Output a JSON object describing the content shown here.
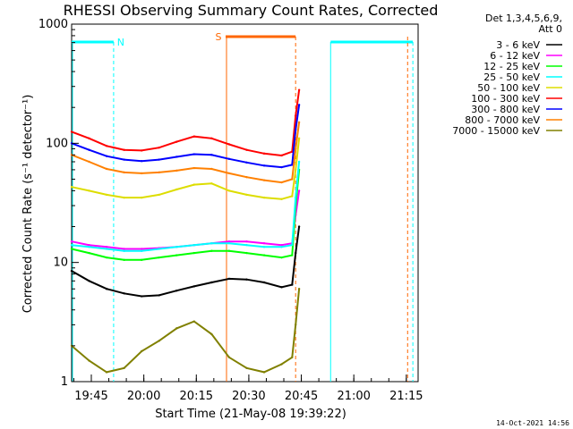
{
  "chart_data": {
    "type": "line",
    "title": "RHESSI Observing Summary Count Rates, Corrected",
    "xlabel": "Start Time (21-May-08 19:39:22)",
    "ylabel": "Corrected Count Rate (s⁻¹ detector⁻¹)",
    "yscale": "log",
    "ylim": [
      1,
      1000
    ],
    "xlim_minutes_from_start": [
      0,
      99
    ],
    "x_ticks": [
      "19:45",
      "20:00",
      "20:15",
      "20:30",
      "20:45",
      "21:00",
      "21:15"
    ],
    "y_ticks": [
      "1",
      "10",
      "100",
      "1000"
    ],
    "legend_header": [
      "Det 1,3,4,5,6,9,",
      "Att 0"
    ],
    "legend_position": "right",
    "series": [
      {
        "name": "3 - 6 keV",
        "color": "#000000",
        "x": [
          0,
          5,
          10,
          15,
          20,
          25,
          30,
          35,
          40,
          45,
          50,
          55,
          60,
          63,
          64,
          65
        ],
        "y": [
          8.5,
          7.0,
          6.0,
          5.5,
          5.2,
          5.3,
          5.8,
          6.3,
          6.8,
          7.3,
          7.2,
          6.8,
          6.2,
          6.5,
          12,
          20
        ]
      },
      {
        "name": "6 - 12 keV",
        "color": "#ff00ff",
        "x": [
          0,
          5,
          10,
          15,
          20,
          25,
          30,
          35,
          40,
          45,
          50,
          55,
          60,
          63,
          64,
          65
        ],
        "y": [
          15,
          14,
          13.5,
          13,
          13,
          13.2,
          13.5,
          14,
          14.5,
          15,
          15,
          14.5,
          14,
          14.5,
          25,
          40
        ]
      },
      {
        "name": "12 - 25 keV",
        "color": "#00ff00",
        "x": [
          0,
          5,
          10,
          15,
          20,
          25,
          30,
          35,
          40,
          45,
          50,
          55,
          60,
          63,
          64,
          65
        ],
        "y": [
          13,
          12,
          11,
          10.5,
          10.5,
          11,
          11.5,
          12,
          12.5,
          12.5,
          12,
          11.5,
          11,
          11.5,
          30,
          60
        ]
      },
      {
        "name": "25 - 50 keV",
        "color": "#00ffff",
        "x": [
          0,
          5,
          10,
          15,
          20,
          25,
          30,
          35,
          40,
          45,
          50,
          55,
          60,
          63,
          64,
          65
        ],
        "y": [
          14,
          13.5,
          13,
          12.5,
          12.5,
          13,
          13.5,
          14,
          14.5,
          14.5,
          14,
          13.5,
          13.5,
          14,
          35,
          70
        ]
      },
      {
        "name": "50 - 100 keV",
        "color": "#dddd00",
        "x": [
          0,
          5,
          10,
          15,
          20,
          25,
          30,
          35,
          40,
          45,
          50,
          55,
          60,
          63,
          64,
          65
        ],
        "y": [
          43,
          40,
          37,
          35,
          35,
          37,
          41,
          45,
          46,
          40,
          37,
          35,
          34,
          36,
          60,
          110
        ]
      },
      {
        "name": "100 - 300 keV",
        "color": "#ff0000",
        "x": [
          0,
          5,
          10,
          15,
          20,
          25,
          30,
          35,
          40,
          45,
          50,
          55,
          60,
          63,
          64,
          65
        ],
        "y": [
          125,
          110,
          95,
          88,
          87,
          92,
          103,
          114,
          110,
          98,
          88,
          82,
          79,
          85,
          170,
          280
        ]
      },
      {
        "name": "300 - 800 keV",
        "color": "#0000ff",
        "x": [
          0,
          5,
          10,
          15,
          20,
          25,
          30,
          35,
          40,
          45,
          50,
          55,
          60,
          63,
          64,
          65
        ],
        "y": [
          100,
          88,
          78,
          73,
          71,
          73,
          77,
          81,
          80,
          74,
          69,
          65,
          63,
          66,
          130,
          210
        ]
      },
      {
        "name": "800 - 7000 keV",
        "color": "#ff8000",
        "x": [
          0,
          5,
          10,
          15,
          20,
          25,
          30,
          35,
          40,
          45,
          50,
          55,
          60,
          63,
          64,
          65
        ],
        "y": [
          80,
          70,
          61,
          57,
          56,
          57,
          59,
          62,
          61,
          56,
          52,
          49,
          47,
          50,
          90,
          150
        ]
      },
      {
        "name": "7000 - 15000 keV",
        "color": "#808000",
        "x": [
          0,
          5,
          10,
          15,
          20,
          25,
          30,
          35,
          40,
          45,
          50,
          55,
          60,
          63,
          64,
          65
        ],
        "y": [
          2.0,
          1.5,
          1.2,
          1.3,
          1.8,
          2.2,
          2.8,
          3.2,
          2.5,
          1.6,
          1.3,
          1.2,
          1.4,
          1.6,
          3,
          6
        ]
      }
    ],
    "annotations": [
      {
        "text": "N",
        "color": "#00ffff",
        "x_range": [
          0,
          12
        ]
      },
      {
        "text": "S",
        "color": "#ff6600",
        "x_range": [
          44,
          64
        ]
      }
    ],
    "footer_timestamp": "14-Oct-2021 14:56"
  }
}
